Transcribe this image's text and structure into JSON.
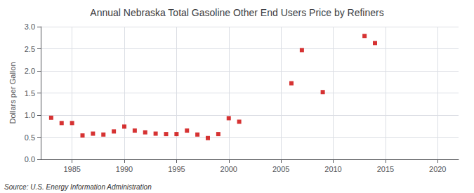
{
  "chart_data": {
    "type": "scatter",
    "title": "Annual Nebraska Total Gasoline Other End Users Price by Refiners",
    "ylabel": "Dollars per Gallon",
    "source": "Source: U.S. Energy Information Administration",
    "x": [
      1983,
      1984,
      1985,
      1986,
      1987,
      1988,
      1989,
      1990,
      1991,
      1992,
      1993,
      1994,
      1995,
      1996,
      1997,
      1998,
      1999,
      2000,
      2001,
      2006,
      2007,
      2009,
      2013,
      2014
    ],
    "values": [
      0.94,
      0.82,
      0.82,
      0.54,
      0.58,
      0.56,
      0.63,
      0.74,
      0.65,
      0.61,
      0.58,
      0.57,
      0.57,
      0.65,
      0.56,
      0.48,
      0.57,
      0.93,
      0.85,
      1.72,
      2.47,
      1.52,
      2.79,
      2.63
    ],
    "color": "#cc0000",
    "marker": "square",
    "xlim": [
      1982,
      2022
    ],
    "ylim": [
      0,
      3
    ],
    "xticks": [
      1985,
      1990,
      1995,
      2000,
      2005,
      2010,
      2015,
      2020
    ],
    "yticks": [
      {
        "value": 0,
        "label": "0.0"
      },
      0.5,
      {
        "value": 1,
        "label": "1.0"
      },
      1.5,
      {
        "value": 2,
        "label": "2.0"
      },
      2.5,
      {
        "value": 3,
        "label": "3.0"
      }
    ],
    "grid": true
  }
}
